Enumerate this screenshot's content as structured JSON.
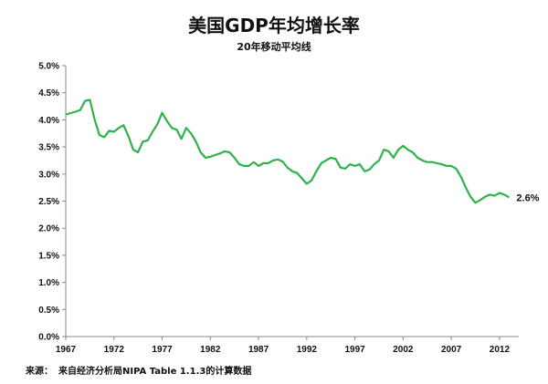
{
  "title": "美国GDP年均增长率",
  "subtitle": "20年移动平均线",
  "source": {
    "label": "来源：",
    "text": "来自经济分析局NIPA Table 1.1.3的计算数据"
  },
  "chart_data": {
    "type": "line",
    "title": "美国GDP年均增长率",
    "subtitle": "20年移动平均线",
    "xlabel": "",
    "ylabel": "",
    "x_ticks": [
      "1967",
      "1972",
      "1977",
      "1982",
      "1987",
      "1992",
      "1997",
      "2002",
      "2007",
      "2012"
    ],
    "y_ticks": [
      "0.0%",
      "0.5%",
      "1.0%",
      "1.5%",
      "2.0%",
      "2.5%",
      "3.0%",
      "3.5%",
      "4.0%",
      "4.5%",
      "5.0%"
    ],
    "xlim": [
      1967,
      2014
    ],
    "ylim": [
      0,
      5.0
    ],
    "grid": false,
    "line_color": "#2db34a",
    "end_label": "2.6%",
    "series": [
      {
        "x": [
          1967,
          1968,
          1968.5,
          1969,
          1969.5,
          1970,
          1970.5,
          1971,
          1971.5,
          1972,
          1972.5,
          1973,
          1973.5,
          1974,
          1974.5,
          1975,
          1975.5,
          1976,
          1976.5,
          1977,
          1977.5,
          1978,
          1978.5,
          1979,
          1979.5,
          1980,
          1980.5,
          1981,
          1981.5,
          1982,
          1982.5,
          1983,
          1983.5,
          1984,
          1984.5,
          1985,
          1985.5,
          1986,
          1986.5,
          1987,
          1987.5,
          1988,
          1988.5,
          1989,
          1989.5,
          1990,
          1990.5,
          1991,
          1991.5,
          1992,
          1992.5,
          1993,
          1993.5,
          1994,
          1994.5,
          1995,
          1995.5,
          1996,
          1996.5,
          1997,
          1997.5,
          1998,
          1998.5,
          1999,
          1999.5,
          2000,
          2000.5,
          2001,
          2001.5,
          2002,
          2002.5,
          2003,
          2003.5,
          2004,
          2004.5,
          2005,
          2005.5,
          2006,
          2006.5,
          2007,
          2007.5,
          2008,
          2008.5,
          2009,
          2009.5,
          2010,
          2010.5,
          2011,
          2011.5,
          2012,
          2012.5,
          2013
        ],
        "values": [
          4.1,
          4.15,
          4.18,
          4.35,
          4.37,
          4.0,
          3.72,
          3.68,
          3.8,
          3.78,
          3.85,
          3.9,
          3.7,
          3.45,
          3.4,
          3.6,
          3.62,
          3.78,
          3.92,
          4.13,
          3.98,
          3.85,
          3.82,
          3.65,
          3.85,
          3.75,
          3.6,
          3.4,
          3.3,
          3.32,
          3.35,
          3.38,
          3.42,
          3.4,
          3.3,
          3.18,
          3.15,
          3.15,
          3.22,
          3.15,
          3.2,
          3.2,
          3.25,
          3.27,
          3.23,
          3.12,
          3.05,
          3.02,
          2.92,
          2.82,
          2.88,
          3.05,
          3.2,
          3.25,
          3.3,
          3.28,
          3.12,
          3.1,
          3.18,
          3.15,
          3.18,
          3.05,
          3.08,
          3.18,
          3.25,
          3.45,
          3.42,
          3.3,
          3.45,
          3.52,
          3.45,
          3.4,
          3.3,
          3.25,
          3.22,
          3.22,
          3.2,
          3.18,
          3.15,
          3.15,
          3.1,
          2.95,
          2.75,
          2.58,
          2.47,
          2.52,
          2.58,
          2.62,
          2.6,
          2.65,
          2.62,
          2.57
        ]
      }
    ]
  }
}
